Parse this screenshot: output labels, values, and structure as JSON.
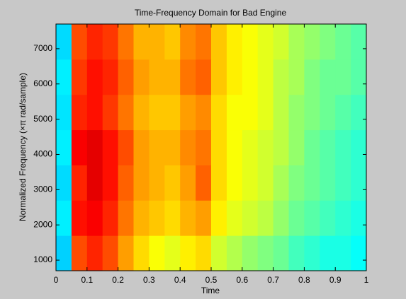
{
  "chart_data": {
    "type": "heatmap",
    "title": "Time-Frequency Domain for Bad Engine",
    "xlabel": "Time",
    "ylabel": "Normalized Frequency  (×π rad/sample)",
    "xlim": [
      0,
      1
    ],
    "xticks": [
      0,
      0.1,
      0.2,
      0.3,
      0.4,
      0.5,
      0.6,
      0.7,
      0.8,
      0.9,
      1
    ],
    "ylim": [
      700,
      7700
    ],
    "yticks": [
      1000,
      2000,
      3000,
      4000,
      5000,
      6000,
      7000
    ],
    "colormap": "jet",
    "clim": [
      0,
      1
    ],
    "z": [
      [
        0.33,
        0.8,
        0.84,
        0.8,
        0.72,
        0.66,
        0.62,
        0.6,
        0.64,
        0.66,
        0.58,
        0.55,
        0.52,
        0.5,
        0.48,
        0.44,
        0.42,
        0.4,
        0.4,
        0.38
      ],
      [
        0.36,
        0.86,
        0.88,
        0.84,
        0.76,
        0.7,
        0.68,
        0.66,
        0.7,
        0.72,
        0.64,
        0.6,
        0.58,
        0.56,
        0.52,
        0.48,
        0.46,
        0.44,
        0.42,
        0.4
      ],
      [
        0.34,
        0.84,
        0.9,
        0.86,
        0.78,
        0.72,
        0.7,
        0.68,
        0.72,
        0.78,
        0.66,
        0.62,
        0.6,
        0.58,
        0.54,
        0.5,
        0.48,
        0.46,
        0.44,
        0.42
      ],
      [
        0.36,
        0.88,
        0.9,
        0.86,
        0.8,
        0.72,
        0.7,
        0.7,
        0.74,
        0.76,
        0.66,
        0.62,
        0.6,
        0.58,
        0.56,
        0.52,
        0.48,
        0.46,
        0.44,
        0.42
      ],
      [
        0.35,
        0.84,
        0.86,
        0.82,
        0.76,
        0.7,
        0.68,
        0.68,
        0.72,
        0.74,
        0.66,
        0.62,
        0.62,
        0.6,
        0.56,
        0.52,
        0.5,
        0.48,
        0.46,
        0.44
      ],
      [
        0.36,
        0.82,
        0.86,
        0.84,
        0.78,
        0.72,
        0.7,
        0.7,
        0.76,
        0.78,
        0.68,
        0.64,
        0.62,
        0.6,
        0.56,
        0.54,
        0.5,
        0.48,
        0.48,
        0.46
      ],
      [
        0.34,
        0.8,
        0.84,
        0.82,
        0.76,
        0.7,
        0.7,
        0.68,
        0.74,
        0.76,
        0.68,
        0.64,
        0.62,
        0.6,
        0.58,
        0.54,
        0.52,
        0.5,
        0.48,
        0.46
      ]
    ]
  }
}
